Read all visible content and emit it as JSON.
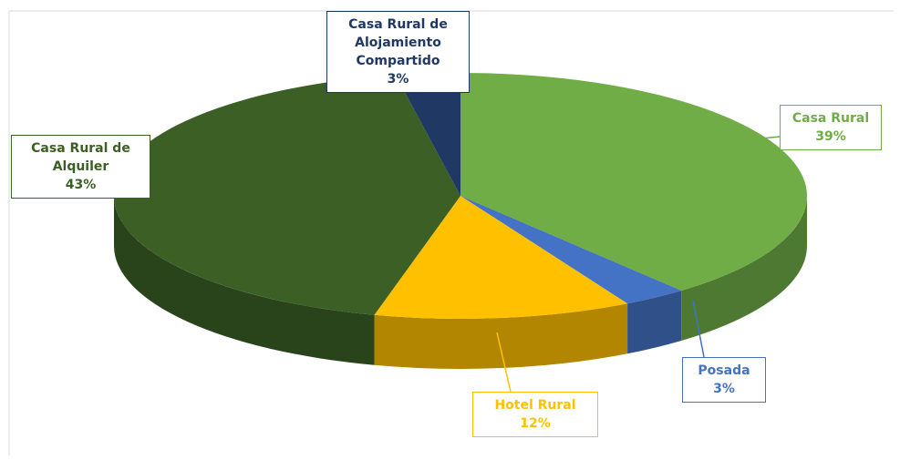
{
  "chart_data": {
    "type": "pie",
    "categories": [
      "Casa Rural",
      "Posada",
      "Hotel Rural",
      "Casa Rural de Alquiler",
      "Casa Rural de Alojamiento Compartido"
    ],
    "values": [
      39,
      3,
      12,
      43,
      3
    ],
    "value_labels": [
      "39%",
      "3%",
      "12%",
      "43%",
      "3%"
    ],
    "colors": [
      "#70ad47",
      "#4472c4",
      "#ffc000",
      "#3b5f25",
      "#203864"
    ]
  }
}
